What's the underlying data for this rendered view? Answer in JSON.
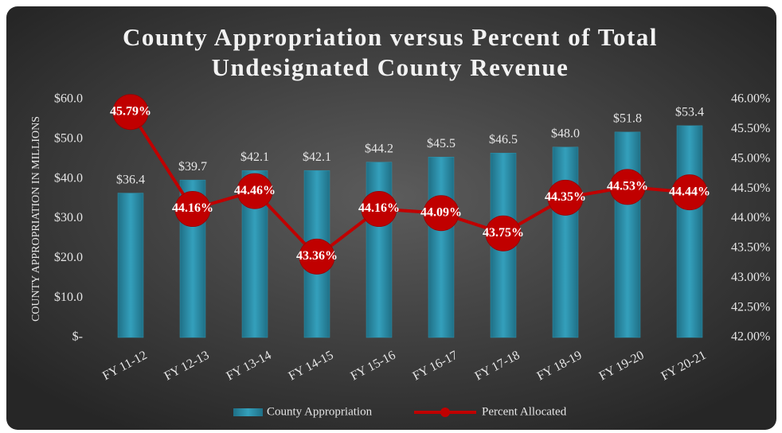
{
  "chart_data": {
    "type": "combo",
    "title": "County Appropriation versus Percent of Total Undesignated County Revenue",
    "ylabel": "COUNTY APPROPRIATION IN MILLIONS",
    "categories": [
      "FY 11-12",
      "FY 12-13",
      "FY 13-14",
      "FY 14-15",
      "FY 15-16",
      "FY 16-17",
      "FY 17-18",
      "FY 18-19",
      "FY 19-20",
      "FY 20-21"
    ],
    "series": [
      {
        "name": "County Appropriation",
        "type": "bar",
        "color": "#2f93ad",
        "values": [
          36.4,
          39.7,
          42.1,
          42.1,
          44.2,
          45.5,
          46.5,
          48.0,
          51.8,
          53.4
        ],
        "value_labels": [
          "$36.4",
          "$39.7",
          "$42.1",
          "$42.1",
          "$44.2",
          "$45.5",
          "$46.5",
          "$48.0",
          "$51.8",
          "$53.4"
        ]
      },
      {
        "name": "Percent Allocated",
        "type": "line",
        "axis": "y2",
        "color": "#c00000",
        "values": [
          45.79,
          44.16,
          44.46,
          43.36,
          44.16,
          44.09,
          43.75,
          44.35,
          44.53,
          44.44
        ],
        "value_labels": [
          "45.79%",
          "44.16%",
          "44.46%",
          "43.36%",
          "44.16%",
          "44.09%",
          "43.75%",
          "44.35%",
          "44.53%",
          "44.44%"
        ]
      }
    ],
    "ylim": [
      0,
      60
    ],
    "yticks": [
      {
        "value": 0,
        "label": "$-"
      },
      {
        "value": 10,
        "label": "$10.0"
      },
      {
        "value": 20,
        "label": "$20.0"
      },
      {
        "value": 30,
        "label": "$30.0"
      },
      {
        "value": 40,
        "label": "$40.0"
      },
      {
        "value": 50,
        "label": "$50.0"
      },
      {
        "value": 60,
        "label": "$60.0"
      }
    ],
    "y2lim": [
      42,
      46
    ],
    "y2ticks": [
      {
        "value": 42,
        "label": "42.00%"
      },
      {
        "value": 42.5,
        "label": "42.50%"
      },
      {
        "value": 43,
        "label": "43.00%"
      },
      {
        "value": 43.5,
        "label": "43.50%"
      },
      {
        "value": 44,
        "label": "44.00%"
      },
      {
        "value": 44.5,
        "label": "44.50%"
      },
      {
        "value": 45,
        "label": "45.00%"
      },
      {
        "value": 45.5,
        "label": "45.50%"
      },
      {
        "value": 46,
        "label": "46.00%"
      }
    ],
    "grid": false,
    "legend": "bottom"
  }
}
